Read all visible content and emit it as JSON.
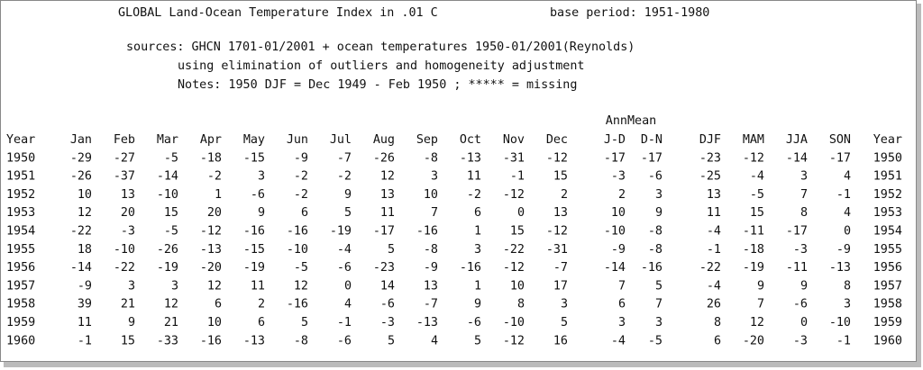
{
  "header": {
    "title": "GLOBAL Land-Ocean Temperature Index in .01 C",
    "base_period": "base period: 1951-1980",
    "sources": "sources: GHCN 1701-01/2001 + ocean temperatures 1950-01/2001(Reynolds)",
    "method": "using elimination of outliers and homogeneity adjustment",
    "notes": "Notes: 1950 DJF = Dec 1949 - Feb 1950 ;  ***** = missing"
  },
  "table": {
    "group_header": "AnnMean",
    "columns": [
      "Year",
      "Jan",
      "Feb",
      "Mar",
      "Apr",
      "May",
      "Jun",
      "Jul",
      "Aug",
      "Sep",
      "Oct",
      "Nov",
      "Dec",
      "J-D",
      "D-N",
      "DJF",
      "MAM",
      "JJA",
      "SON",
      "Year"
    ],
    "rows": [
      [
        1950,
        -29,
        -27,
        -5,
        -18,
        -15,
        -9,
        -7,
        -26,
        -8,
        -13,
        -31,
        -12,
        -17,
        -17,
        -23,
        -12,
        -14,
        -17,
        1950
      ],
      [
        1951,
        -26,
        -37,
        -14,
        -2,
        3,
        -2,
        -2,
        12,
        3,
        11,
        -1,
        15,
        -3,
        -6,
        -25,
        -4,
        3,
        4,
        1951
      ],
      [
        1952,
        10,
        13,
        -10,
        1,
        -6,
        -2,
        9,
        13,
        10,
        -2,
        -12,
        2,
        2,
        3,
        13,
        -5,
        7,
        -1,
        1952
      ],
      [
        1953,
        12,
        20,
        15,
        20,
        9,
        6,
        5,
        11,
        7,
        6,
        0,
        13,
        10,
        9,
        11,
        15,
        8,
        4,
        1953
      ],
      [
        1954,
        -22,
        -3,
        -5,
        -12,
        -16,
        -16,
        -19,
        -17,
        -16,
        1,
        15,
        -12,
        -10,
        -8,
        -4,
        -11,
        -17,
        0,
        1954
      ],
      [
        1955,
        18,
        -10,
        -26,
        -13,
        -15,
        -10,
        -4,
        5,
        -8,
        3,
        -22,
        -31,
        -9,
        -8,
        -1,
        -18,
        -3,
        -9,
        1955
      ],
      [
        1956,
        -14,
        -22,
        -19,
        -20,
        -19,
        -5,
        -6,
        -23,
        -9,
        -16,
        -12,
        -7,
        -14,
        -16,
        -22,
        -19,
        -11,
        -13,
        1956
      ],
      [
        1957,
        -9,
        3,
        3,
        12,
        11,
        12,
        0,
        14,
        13,
        1,
        10,
        17,
        7,
        5,
        -4,
        9,
        9,
        8,
        1957
      ],
      [
        1958,
        39,
        21,
        12,
        6,
        2,
        -16,
        4,
        -6,
        -7,
        9,
        8,
        3,
        6,
        7,
        26,
        7,
        -6,
        3,
        1958
      ],
      [
        1959,
        11,
        9,
        21,
        10,
        6,
        5,
        -1,
        -3,
        -13,
        -6,
        -10,
        5,
        3,
        3,
        8,
        12,
        0,
        -10,
        1959
      ],
      [
        1960,
        -1,
        15,
        -33,
        -16,
        -13,
        -8,
        -6,
        5,
        4,
        5,
        -12,
        16,
        -4,
        -5,
        6,
        -20,
        -3,
        -1,
        1960
      ]
    ]
  }
}
